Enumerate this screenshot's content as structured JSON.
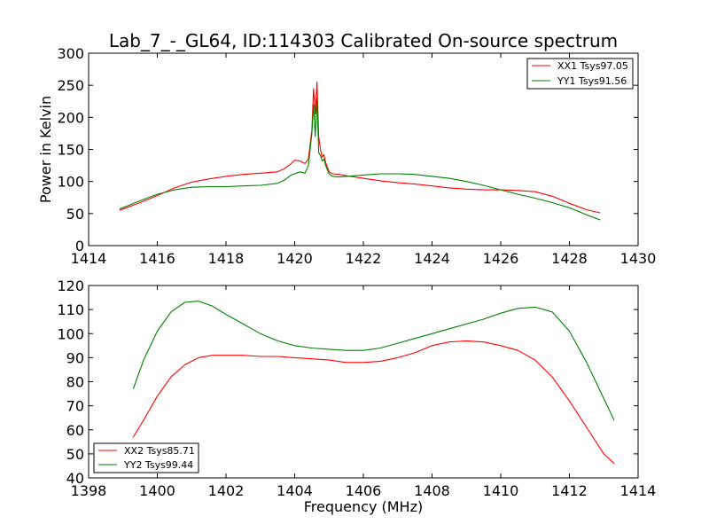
{
  "figure": {
    "title": "Lab_7_-_GL64, ID:114303 Calibrated On-source spectrum"
  },
  "colors": {
    "red": "#ff0000",
    "green": "#008000",
    "axis": "#000000"
  },
  "chart_data": [
    {
      "type": "line",
      "title": "Lab_7_-_GL64, ID:114303 Calibrated On-source spectrum",
      "xlabel": "",
      "ylabel": "Power in Kelvin",
      "xlim": [
        1414,
        1430
      ],
      "ylim": [
        0,
        300
      ],
      "xticks": [
        "1414",
        "1416",
        "1418",
        "1420",
        "1422",
        "1424",
        "1426",
        "1428",
        "1430"
      ],
      "yticks": [
        "0",
        "50",
        "100",
        "150",
        "200",
        "250",
        "300"
      ],
      "grid": false,
      "legend_position": "top-right",
      "series": [
        {
          "name": "XX1 Tsys97.05",
          "color": "#ff0000",
          "x": [
            1414.9,
            1415.5,
            1416,
            1416.5,
            1417,
            1417.5,
            1418,
            1418.5,
            1419,
            1419.5,
            1419.7,
            1419.9,
            1420.0,
            1420.15,
            1420.3,
            1420.4,
            1420.5,
            1420.55,
            1420.6,
            1420.65,
            1420.7,
            1420.75,
            1420.8,
            1420.85,
            1420.9,
            1421.0,
            1421.1,
            1421.3,
            1421.5,
            1422,
            1422.5,
            1423,
            1423.5,
            1424,
            1424.5,
            1425,
            1425.5,
            1426,
            1426.5,
            1427,
            1427.5,
            1428,
            1428.5,
            1428.9
          ],
          "y": [
            55,
            67,
            78,
            90,
            99,
            104,
            108,
            111,
            113,
            115,
            120,
            128,
            133,
            132,
            128,
            135,
            180,
            245,
            205,
            255,
            170,
            150,
            138,
            142,
            130,
            115,
            112,
            111,
            109,
            105,
            101,
            98,
            96,
            93,
            90,
            88,
            87,
            87,
            86,
            84,
            77,
            66,
            56,
            51
          ]
        },
        {
          "name": "YY1 Tsys91.56",
          "color": "#008000",
          "x": [
            1414.9,
            1415.5,
            1416,
            1416.5,
            1417,
            1417.5,
            1418,
            1418.5,
            1419,
            1419.5,
            1419.7,
            1419.9,
            1420.0,
            1420.15,
            1420.3,
            1420.4,
            1420.5,
            1420.55,
            1420.6,
            1420.65,
            1420.7,
            1420.75,
            1420.8,
            1420.85,
            1420.9,
            1421.0,
            1421.1,
            1421.3,
            1421.5,
            1422,
            1422.5,
            1423,
            1423.5,
            1424,
            1424.5,
            1425,
            1425.5,
            1426,
            1426.5,
            1427,
            1427.5,
            1428,
            1428.5,
            1428.9
          ],
          "y": [
            57,
            70,
            80,
            87,
            91,
            92,
            92,
            93,
            94,
            97,
            102,
            110,
            112,
            115,
            113,
            125,
            175,
            220,
            170,
            230,
            145,
            140,
            132,
            135,
            125,
            112,
            108,
            107,
            108,
            110,
            112,
            112,
            111,
            108,
            105,
            100,
            94,
            87,
            80,
            74,
            67,
            59,
            48,
            40
          ]
        }
      ]
    },
    {
      "type": "line",
      "title": "",
      "xlabel": "Frequency (MHz)",
      "ylabel": "",
      "xlim": [
        1398,
        1414
      ],
      "ylim": [
        40,
        120
      ],
      "xticks": [
        "1398",
        "1400",
        "1402",
        "1404",
        "1406",
        "1408",
        "1410",
        "1412",
        "1414"
      ],
      "yticks": [
        "40",
        "50",
        "60",
        "70",
        "80",
        "90",
        "100",
        "110",
        "120"
      ],
      "grid": false,
      "legend_position": "bottom-left",
      "series": [
        {
          "name": "XX2 Tsys85.71",
          "color": "#ff0000",
          "x": [
            1399.3,
            1399.6,
            1400,
            1400.4,
            1400.8,
            1401.2,
            1401.6,
            1402,
            1402.5,
            1403,
            1403.5,
            1404,
            1404.5,
            1405,
            1405.5,
            1406,
            1406.5,
            1407,
            1407.5,
            1408,
            1408.5,
            1409,
            1409.5,
            1410,
            1410.5,
            1411,
            1411.5,
            1412,
            1412.5,
            1413,
            1413.3
          ],
          "y": [
            57,
            64,
            74,
            82,
            87,
            90,
            91,
            91,
            91,
            90.5,
            90.5,
            90,
            89.5,
            89,
            88,
            88,
            88.5,
            90,
            92,
            95,
            96.5,
            97,
            96.5,
            95,
            93,
            89,
            82,
            72,
            61,
            50,
            46
          ]
        },
        {
          "name": "YY2 Tsys99.44",
          "color": "#008000",
          "x": [
            1399.3,
            1399.6,
            1400,
            1400.4,
            1400.8,
            1401.2,
            1401.6,
            1402,
            1402.5,
            1403,
            1403.5,
            1404,
            1404.5,
            1405,
            1405.5,
            1406,
            1406.5,
            1407,
            1407.5,
            1408,
            1408.5,
            1409,
            1409.5,
            1410,
            1410.5,
            1411,
            1411.5,
            1412,
            1412.5,
            1413,
            1413.3
          ],
          "y": [
            77,
            89,
            101,
            109,
            113,
            113.5,
            111.5,
            108,
            104,
            100,
            97,
            95,
            94,
            93.5,
            93,
            93,
            94,
            96,
            98,
            100,
            102,
            104,
            106,
            108.5,
            110.5,
            111,
            109,
            101,
            88,
            73,
            64
          ]
        }
      ]
    }
  ]
}
